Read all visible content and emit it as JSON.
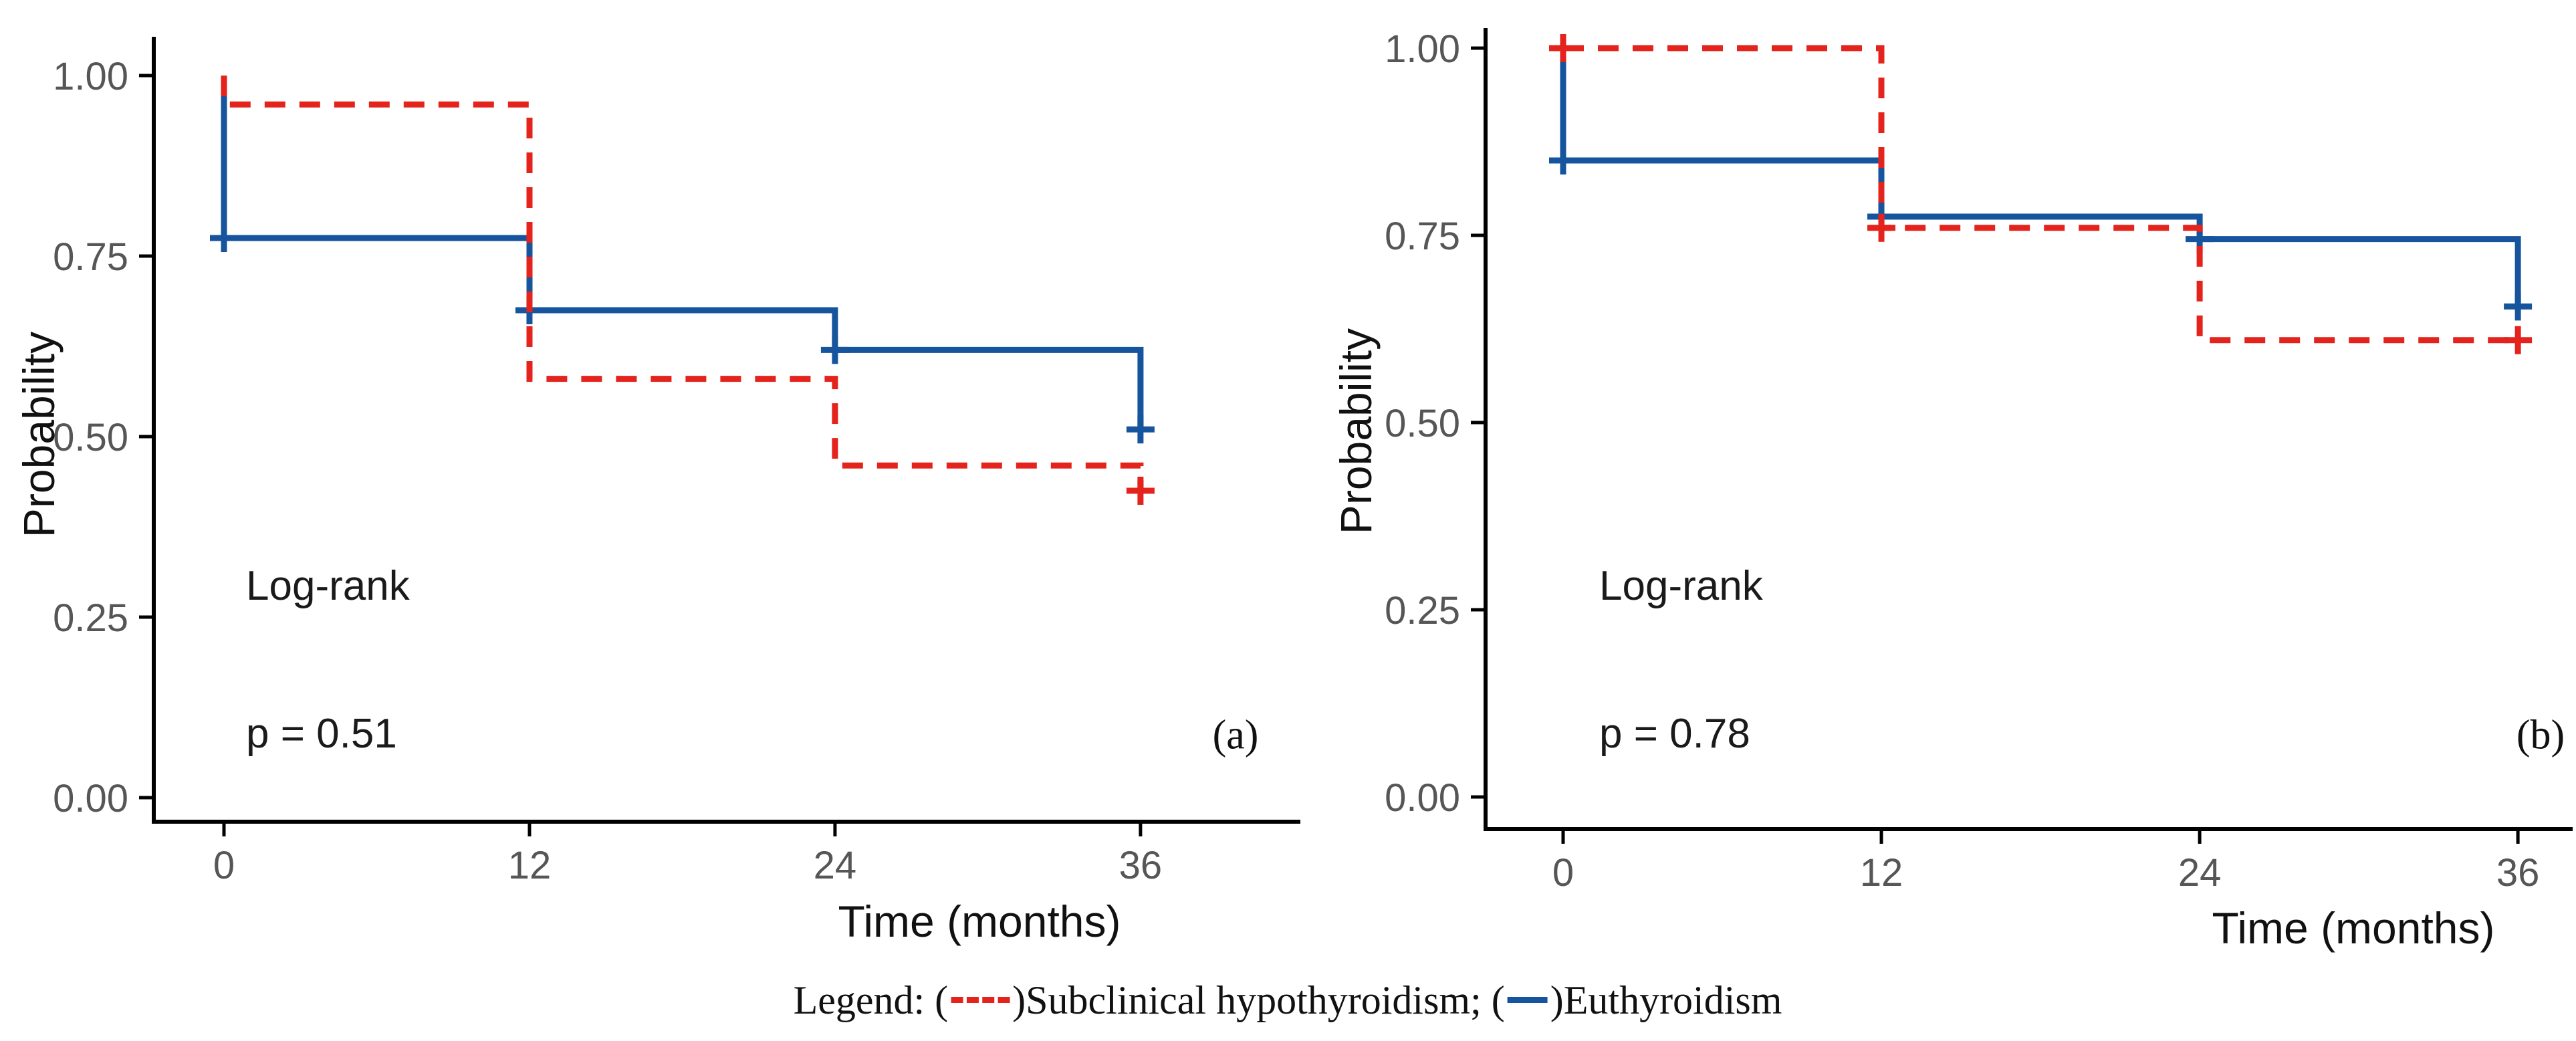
{
  "figure": {
    "background": "#ffffff",
    "description": "Two-panel Kaplan-Meier survival step plot"
  },
  "colors": {
    "subclinical": "#e4231c",
    "euthyroidism": "#16549e",
    "tick_label": "#565656",
    "axis_line": "#000000",
    "annotation_text": "#1a1a1a"
  },
  "legend": {
    "prefix": "Legend: ",
    "open_paren": "(",
    "close_paren": ")",
    "separator": "; ",
    "items": [
      {
        "label": "Subclinical hypothyroidism",
        "color": "#e4231c",
        "line_style": "dashed"
      },
      {
        "label": "Euthyroidism",
        "color": "#16549e",
        "line_style": "solid"
      }
    ]
  },
  "chart_data": [
    {
      "type": "line",
      "subtype": "kaplan-meier-step",
      "panel_label": "(a)",
      "xlabel": "Time (months)",
      "ylabel": "Probability",
      "annotation": {
        "line1": "Log-rank",
        "line2": "p = 0.51"
      },
      "xlim": [
        0,
        36
      ],
      "ylim": [
        0,
        1
      ],
      "grid": false,
      "xticks": [
        0,
        12,
        24,
        36
      ],
      "xtick_labels": [
        "0",
        "12",
        "24",
        "36"
      ],
      "yticks": [
        0,
        0.25,
        0.5,
        0.75,
        1
      ],
      "ytick_labels": [
        "0.00",
        "0.25",
        "0.50",
        "0.75",
        "1.00"
      ],
      "series": [
        {
          "name": "Euthyroidism",
          "color": "#16549e",
          "line_style": "solid",
          "points": [
            [
              0,
              1.0
            ],
            [
              0,
              0.775
            ],
            [
              12,
              0.775
            ],
            [
              12,
              0.675
            ],
            [
              24,
              0.675
            ],
            [
              24,
              0.62
            ],
            [
              36,
              0.62
            ],
            [
              36,
              0.51
            ]
          ],
          "censor_marks": [
            [
              0,
              0.775
            ],
            [
              12,
              0.675
            ],
            [
              24,
              0.62
            ],
            [
              36,
              0.51
            ]
          ]
        },
        {
          "name": "Subclinical hypothyroidism",
          "color": "#e4231c",
          "line_style": "dashed",
          "points": [
            [
              0,
              1.0
            ],
            [
              0,
              0.96
            ],
            [
              12,
              0.96
            ],
            [
              12,
              0.58
            ],
            [
              24,
              0.58
            ],
            [
              24,
              0.46
            ],
            [
              36,
              0.46
            ],
            [
              36,
              0.425
            ]
          ],
          "censor_marks": [
            [
              36,
              0.425
            ]
          ]
        }
      ]
    },
    {
      "type": "line",
      "subtype": "kaplan-meier-step",
      "panel_label": "(b)",
      "xlabel": "Time (months)",
      "ylabel": "Probability",
      "annotation": {
        "line1": "Log-rank",
        "line2": "p = 0.78"
      },
      "xlim": [
        0,
        36
      ],
      "ylim": [
        0,
        1
      ],
      "grid": false,
      "xticks": [
        0,
        12,
        24,
        36
      ],
      "xtick_labels": [
        "0",
        "12",
        "24",
        "36"
      ],
      "yticks": [
        0,
        0.25,
        0.5,
        0.75,
        1
      ],
      "ytick_labels": [
        "0.00",
        "0.25",
        "0.50",
        "0.75",
        "1.00"
      ],
      "series": [
        {
          "name": "Euthyroidism",
          "color": "#16549e",
          "line_style": "solid",
          "points": [
            [
              0,
              1.0
            ],
            [
              0,
              0.85
            ],
            [
              12,
              0.85
            ],
            [
              12,
              0.775
            ],
            [
              24,
              0.775
            ],
            [
              24,
              0.745
            ],
            [
              36,
              0.745
            ],
            [
              36,
              0.655
            ]
          ],
          "censor_marks": [
            [
              0,
              0.85
            ],
            [
              12,
              0.775
            ],
            [
              24,
              0.745
            ],
            [
              36,
              0.655
            ]
          ]
        },
        {
          "name": "Subclinical hypothyroidism",
          "color": "#e4231c",
          "line_style": "dashed",
          "points": [
            [
              0,
              1.0
            ],
            [
              12,
              1.0
            ],
            [
              12,
              0.76
            ],
            [
              24,
              0.76
            ],
            [
              24,
              0.61
            ],
            [
              36,
              0.61
            ]
          ],
          "censor_marks": [
            [
              0,
              1.0
            ],
            [
              12,
              0.76
            ],
            [
              36,
              0.61
            ]
          ]
        }
      ]
    }
  ]
}
